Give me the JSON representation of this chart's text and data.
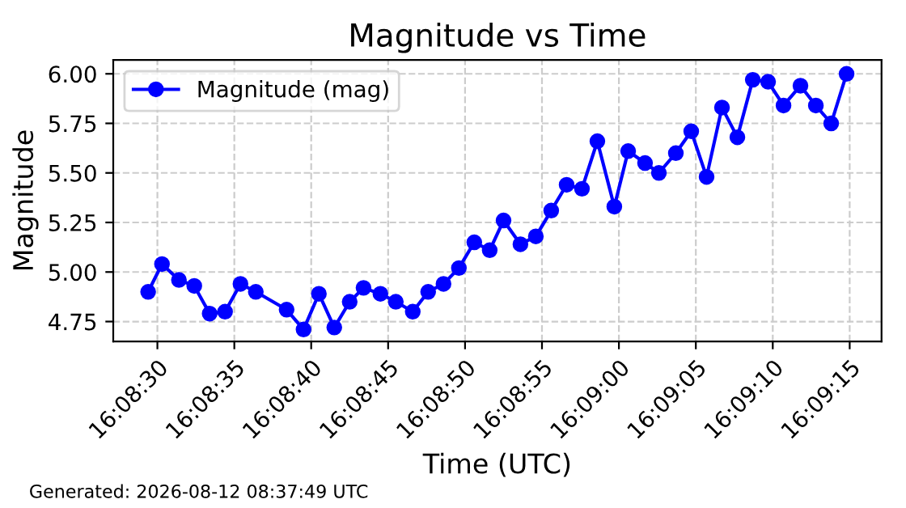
{
  "chart_data": {
    "type": "line",
    "title": "Magnitude vs Time",
    "xlabel": "Time (UTC)",
    "ylabel": "Magnitude",
    "x": [
      16.1415,
      16.14175,
      16.142056,
      16.142333,
      16.142611,
      16.142889,
      16.143167,
      16.143444,
      16.144,
      16.144306,
      16.144583,
      16.144861,
      16.145139,
      16.145389,
      16.145694,
      16.145972,
      16.146278,
      16.146556,
      16.146833,
      16.147111,
      16.147389,
      16.147667,
      16.147917,
      16.148222,
      16.1485,
      16.148778,
      16.149056,
      16.149333,
      16.149611,
      16.149917,
      16.150167,
      16.150472,
      16.150722,
      16.151028,
      16.151306,
      16.151583,
      16.151861,
      16.152139,
      16.152417,
      16.152694,
      16.152972,
      16.153278,
      16.153556,
      16.153833,
      16.154111
    ],
    "series": [
      {
        "name": "Magnitude (mag)",
        "color": "#0000ff",
        "values": [
          4.9,
          5.04,
          4.96,
          4.93,
          4.79,
          4.8,
          4.94,
          4.9,
          4.81,
          4.71,
          4.89,
          4.72,
          4.85,
          4.92,
          4.89,
          4.85,
          4.8,
          4.9,
          4.94,
          5.02,
          5.15,
          5.11,
          5.26,
          5.14,
          5.18,
          5.31,
          5.44,
          5.42,
          5.66,
          5.33,
          5.61,
          5.55,
          5.5,
          5.6,
          5.71,
          5.48,
          5.83,
          5.68,
          5.97,
          5.96,
          5.84,
          5.94,
          5.84,
          5.75,
          6.0
        ]
      }
    ],
    "xlim": [
      16.14087,
      16.154742
    ],
    "xticks": [
      {
        "value": 16.141667,
        "label": "16:08:30"
      },
      {
        "value": 16.143056,
        "label": "16:08:35"
      },
      {
        "value": 16.144444,
        "label": "16:08:40"
      },
      {
        "value": 16.145833,
        "label": "16:08:45"
      },
      {
        "value": 16.147222,
        "label": "16:08:50"
      },
      {
        "value": 16.148611,
        "label": "16:08:55"
      },
      {
        "value": 16.15,
        "label": "16:09:00"
      },
      {
        "value": 16.151389,
        "label": "16:09:05"
      },
      {
        "value": 16.152778,
        "label": "16:09:10"
      },
      {
        "value": 16.154167,
        "label": "16:09:15"
      }
    ],
    "ylim": [
      4.65,
      6.07
    ],
    "yticks": [
      {
        "value": 4.75,
        "label": "4.75"
      },
      {
        "value": 5.0,
        "label": "5.00"
      },
      {
        "value": 5.25,
        "label": "5.25"
      },
      {
        "value": 5.5,
        "label": "5.50"
      },
      {
        "value": 5.75,
        "label": "5.75"
      },
      {
        "value": 6.0,
        "label": "6.00"
      }
    ],
    "grid": true,
    "legend": "top left",
    "marker": "circle",
    "line_style": "solid",
    "annotations": [
      "Generated: 2026-08-12 08:37:49 UTC"
    ]
  }
}
